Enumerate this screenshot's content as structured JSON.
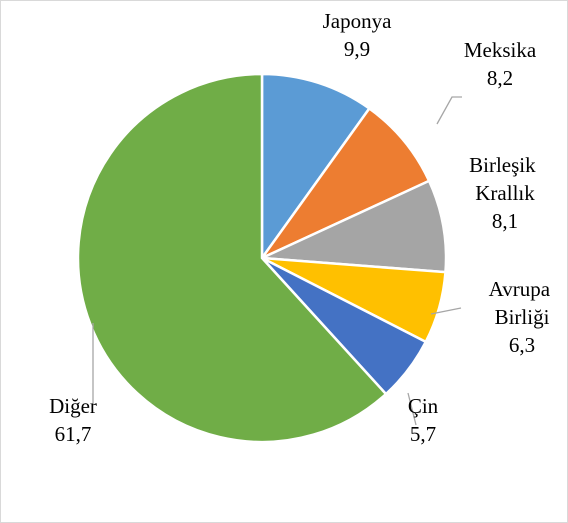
{
  "chart_data": {
    "type": "pie",
    "categories": [
      "Japonya",
      "Meksika",
      "Birleşik Krallık",
      "Avrupa Birliği",
      "Çin",
      "Diğer"
    ],
    "values": [
      9.9,
      8.2,
      8.1,
      6.3,
      5.7,
      61.7
    ],
    "value_labels": [
      "9,9",
      "8,2",
      "8,1",
      "6,3",
      "5,7",
      "61,7"
    ],
    "colors": [
      "#5b9bd5",
      "#ed7d31",
      "#a5a5a5",
      "#ffc000",
      "#4472c4",
      "#70ad47"
    ]
  }
}
